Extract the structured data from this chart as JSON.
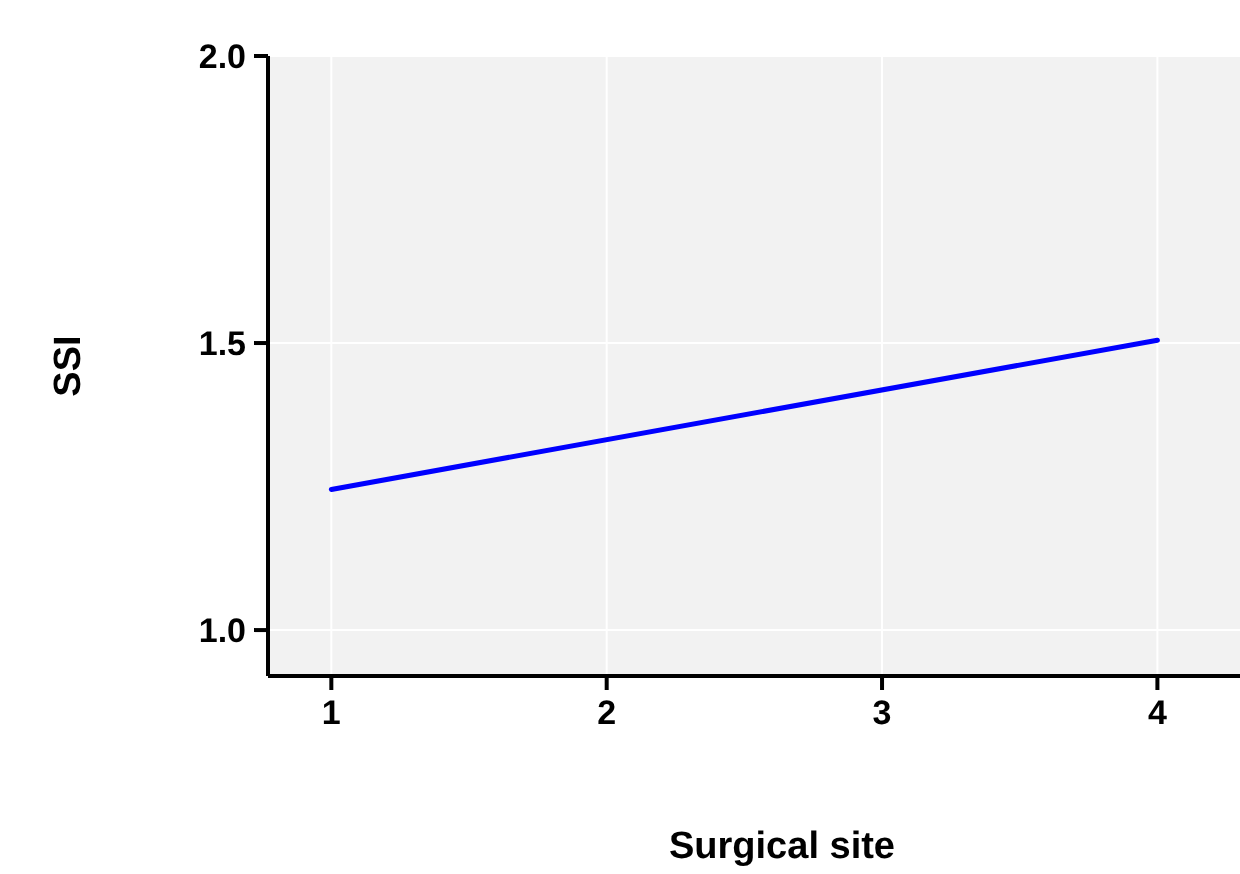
{
  "chart_data": {
    "type": "line",
    "xlabel": "Surgical site",
    "ylabel": "SSI",
    "x": [
      1,
      4
    ],
    "series": [
      {
        "color": "#0000ff",
        "values": [
          1.245,
          1.505
        ]
      }
    ],
    "xlim": [
      0.77,
      4.3
    ],
    "ylim": [
      0.92,
      2.0
    ],
    "xticks": [
      1,
      2,
      3,
      4
    ],
    "yticks": [
      {
        "value": 1.0,
        "label": "1.0"
      },
      {
        "value": 1.5,
        "label": "1.5"
      },
      {
        "value": 2.0,
        "label": "2.0"
      }
    ],
    "grid": true,
    "marker": "none",
    "line_style": "solid"
  }
}
